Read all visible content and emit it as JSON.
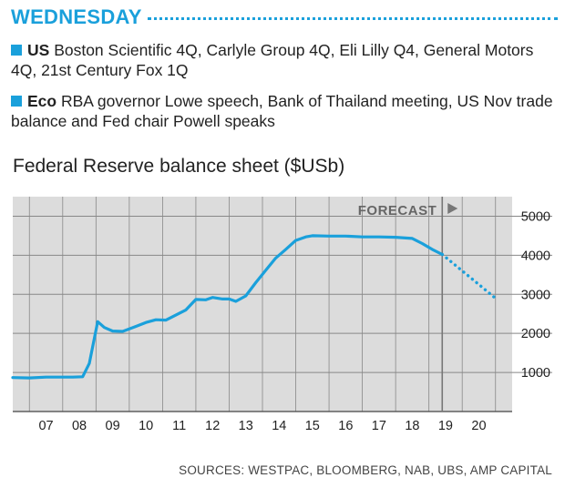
{
  "header": {
    "day": "WEDNESDAY",
    "items": [
      {
        "label": "US",
        "text": "Boston Scientific 4Q, Carlyle Group 4Q, Eli Lilly Q4, General Motors 4Q, 21st Century Fox 1Q"
      },
      {
        "label": "Eco",
        "text": "RBA governor Lowe speech, Bank of Thailand meeting, US Nov trade balance and Fed chair Powell speaks"
      }
    ]
  },
  "source": "SOURCES: WESTPAC, BLOOMBERG, NAB, UBS, AMP CAPITAL",
  "colors": {
    "accent": "#1aa0db",
    "plot_bg": "#dcdcdc",
    "grid": "#888888",
    "line": "#1aa0db"
  },
  "chart_data": {
    "type": "line",
    "title": "Federal Reserve balance sheet ($USb)",
    "xlabel": "",
    "ylabel": "",
    "y_axis_side": "right",
    "xlim": [
      2006.0,
      2021.0
    ],
    "ylim": [
      0,
      5500
    ],
    "yticks": [
      1000,
      2000,
      3000,
      4000,
      5000
    ],
    "ytick_labels": [
      "1000",
      "2000",
      "3000",
      "4000",
      "5000"
    ],
    "xticks": [
      2007,
      2008,
      2009,
      2010,
      2011,
      2012,
      2013,
      2014,
      2015,
      2016,
      2017,
      2018,
      2019,
      2020
    ],
    "xtick_labels": [
      "07",
      "08",
      "09",
      "10",
      "11",
      "12",
      "13",
      "14",
      "15",
      "16",
      "17",
      "18",
      "19",
      "20"
    ],
    "grid": true,
    "forecast_start": 2018.9,
    "forecast_label": "FORECAST",
    "series": [
      {
        "style": "solid",
        "x": [
          2006.0,
          2006.5,
          2007.0,
          2007.5,
          2007.8,
          2008.1,
          2008.3,
          2008.55,
          2008.75,
          2009.0,
          2009.3,
          2009.7,
          2010.0,
          2010.3,
          2010.6,
          2010.85,
          2011.2,
          2011.5,
          2011.8,
          2012.0,
          2012.3,
          2012.5,
          2012.7,
          2013.0,
          2013.3,
          2013.6,
          2013.9,
          2014.2,
          2014.5,
          2014.8,
          2015.0,
          2015.5,
          2016.0,
          2016.5,
          2017.0,
          2017.5,
          2018.0,
          2018.3,
          2018.6,
          2018.9
        ],
        "y": [
          870,
          860,
          880,
          880,
          880,
          890,
          1230,
          2300,
          2150,
          2060,
          2050,
          2180,
          2280,
          2350,
          2340,
          2450,
          2600,
          2870,
          2860,
          2920,
          2880,
          2880,
          2820,
          2960,
          3300,
          3620,
          3930,
          4150,
          4380,
          4470,
          4500,
          4490,
          4490,
          4470,
          4470,
          4460,
          4430,
          4300,
          4150,
          4020
        ]
      },
      {
        "style": "dotted",
        "x": [
          2018.9,
          2019.5,
          2020.0,
          2020.5
        ],
        "y": [
          4020,
          3600,
          3250,
          2900
        ]
      }
    ]
  }
}
